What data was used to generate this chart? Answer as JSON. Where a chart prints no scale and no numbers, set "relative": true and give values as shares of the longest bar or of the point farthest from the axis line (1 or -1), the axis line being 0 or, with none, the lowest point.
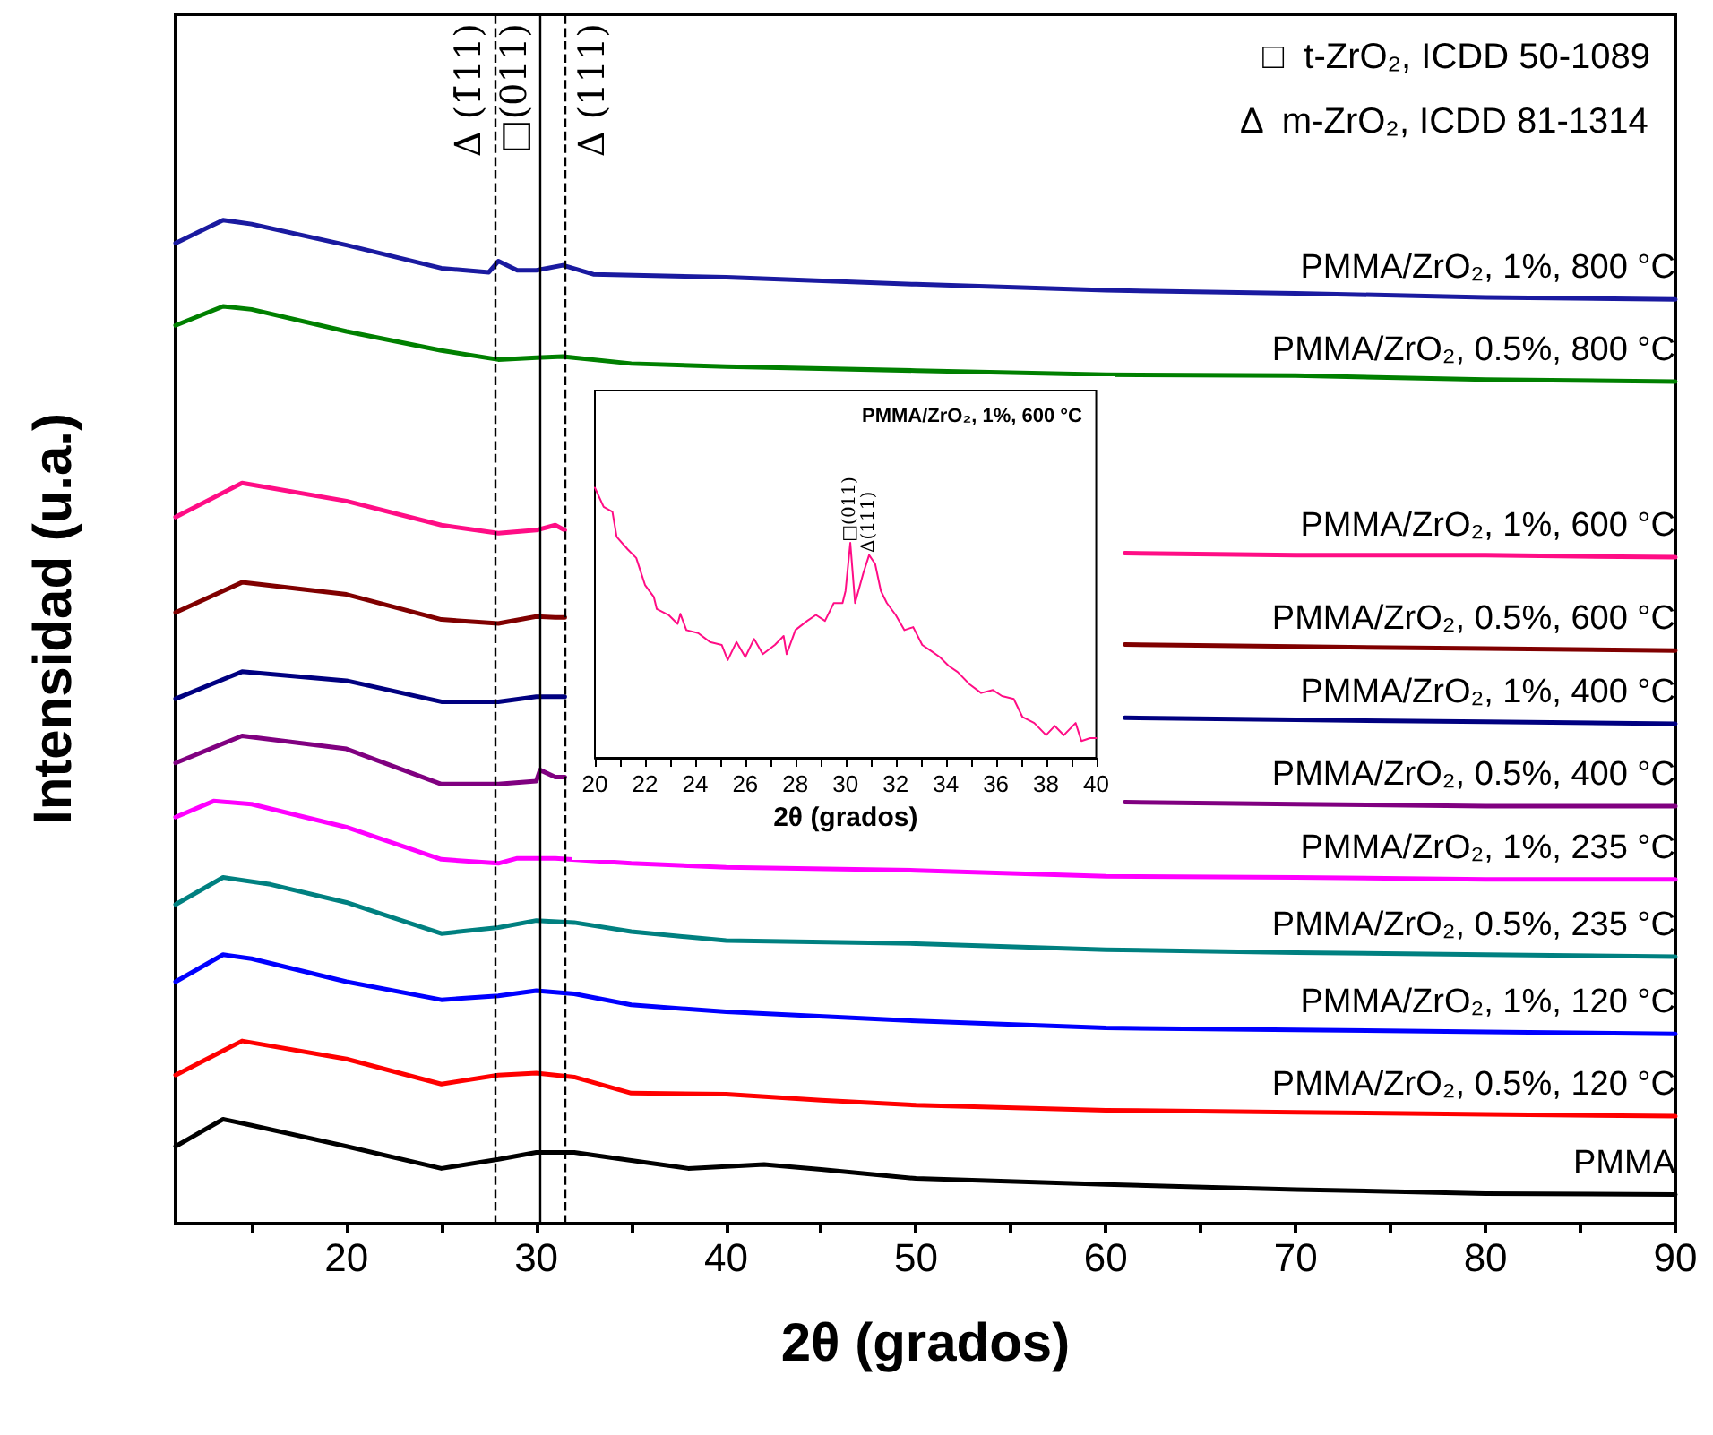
{
  "chart_data": [
    {
      "type": "line",
      "relative": true,
      "xlabel": "2θ (grados)",
      "ylabel": "Intensidad (u.a.)",
      "xlim": [
        11,
        90
      ],
      "xticks": [
        {
          "value": 15,
          "label": null
        },
        20,
        {
          "value": 25,
          "label": null
        },
        30,
        {
          "value": 35,
          "label": null
        },
        40,
        {
          "value": 45,
          "label": null
        },
        50,
        {
          "value": 55,
          "label": null
        },
        60,
        {
          "value": 65,
          "label": null
        },
        70,
        {
          "value": 75,
          "label": null
        },
        80,
        {
          "value": 85,
          "label": null
        },
        90
      ],
      "marker": "none",
      "line_style": "solid",
      "series": [
        {
          "name": "PMMA/ZrO₂, 1%, 800 °C",
          "color": "#1a1aa0",
          "x": [
            11,
            13.5,
            15,
            20,
            25,
            27.5,
            28,
            29,
            30,
            31.4,
            33,
            40,
            50,
            60,
            70,
            80,
            90
          ],
          "values": [
            0.977,
            1.0,
            0.996,
            0.975,
            0.952,
            0.948,
            0.959,
            0.95,
            0.95,
            0.955,
            0.946,
            0.943,
            0.936,
            0.93,
            0.927,
            0.923,
            0.921
          ]
        },
        {
          "name": "PMMA/ZrO₂, 0.5%, 800 °C",
          "color": "#008000",
          "x": [
            11,
            13.5,
            15,
            20,
            25,
            28,
            30,
            31.4,
            35,
            40,
            50,
            60,
            70,
            80,
            90
          ],
          "values": [
            0.895,
            0.914,
            0.911,
            0.889,
            0.87,
            0.861,
            0.863,
            0.864,
            0.857,
            0.854,
            0.85,
            0.846,
            0.845,
            0.841,
            0.839
          ]
        },
        {
          "name": "PMMA/ZrO₂, 1%, 600 °C",
          "color": "#ff0d85",
          "x": [
            11,
            14.5,
            20,
            25,
            28,
            30,
            31,
            31.5,
            45,
            61,
            70,
            80,
            90
          ],
          "values": [
            0.704,
            0.738,
            0.72,
            0.696,
            0.688,
            0.691,
            0.696,
            0.691,
            null,
            0.668,
            0.666,
            0.666,
            0.664
          ]
        },
        {
          "name": "PMMA/ZrO₂, 0.5%, 600 °C",
          "color": "#800000",
          "x": [
            11,
            14.5,
            20,
            25,
            28,
            30,
            31,
            31.5,
            45,
            61,
            70,
            80,
            90
          ],
          "values": [
            0.609,
            0.639,
            0.627,
            0.602,
            0.598,
            0.605,
            0.604,
            0.604,
            null,
            0.577,
            0.575,
            0.573,
            0.571
          ]
        },
        {
          "name": "PMMA/ZrO₂, 1%, 400 °C",
          "color": "#000080",
          "x": [
            11,
            14.5,
            20,
            25,
            28,
            30,
            31,
            31.5,
            45,
            61,
            70,
            80,
            90
          ],
          "values": [
            0.523,
            0.55,
            0.541,
            0.52,
            0.52,
            0.525,
            0.525,
            0.525,
            null,
            0.504,
            0.502,
            0.5,
            0.498
          ]
        },
        {
          "name": "PMMA/ZrO₂, 0.5%, 400 °C",
          "color": "#800080",
          "x": [
            11,
            14.5,
            20,
            25,
            28,
            30,
            30.2,
            31,
            31.5,
            45,
            61,
            70,
            80,
            90
          ],
          "values": [
            0.459,
            0.486,
            0.473,
            0.438,
            0.438,
            0.441,
            0.452,
            0.445,
            0.445,
            null,
            0.42,
            0.418,
            0.416,
            0.416
          ]
        },
        {
          "name": "PMMA/ZrO₂, 1%, 235 °C",
          "color": "#ff00ff",
          "x": [
            11,
            13,
            15,
            20,
            25,
            28,
            29,
            31,
            35,
            40,
            50,
            60,
            70,
            80,
            90
          ],
          "values": [
            0.405,
            0.421,
            0.418,
            0.395,
            0.363,
            0.359,
            0.364,
            0.364,
            0.359,
            0.355,
            0.352,
            0.346,
            0.345,
            0.343,
            0.343
          ]
        },
        {
          "name": "PMMA/ZrO₂, 0.5%, 235 °C",
          "color": "#008080",
          "x": [
            11,
            13.5,
            16,
            20,
            25,
            28,
            30,
            32,
            35,
            40,
            50,
            60,
            70,
            80,
            90
          ],
          "values": [
            0.318,
            0.345,
            0.338,
            0.32,
            0.289,
            0.295,
            0.302,
            0.3,
            0.291,
            0.282,
            0.279,
            0.273,
            0.27,
            0.268,
            0.266
          ]
        },
        {
          "name": "PMMA/ZrO₂, 1%, 120 °C",
          "color": "#0000ff",
          "x": [
            11,
            13.5,
            15,
            20,
            25,
            28,
            30,
            32,
            35,
            40,
            50,
            60,
            70,
            80,
            90
          ],
          "values": [
            0.241,
            0.268,
            0.264,
            0.241,
            0.223,
            0.227,
            0.232,
            0.229,
            0.218,
            0.211,
            0.202,
            0.195,
            0.193,
            0.191,
            0.189
          ]
        },
        {
          "name": "PMMA/ZrO₂, 0.5%, 120 °C",
          "color": "#ff0000",
          "x": [
            11,
            14.5,
            20,
            25,
            28,
            30,
            32,
            35,
            40,
            45,
            50,
            60,
            70,
            80,
            90
          ],
          "values": [
            0.148,
            0.182,
            0.164,
            0.139,
            0.148,
            0.15,
            0.146,
            0.13,
            0.129,
            0.123,
            0.118,
            0.113,
            0.111,
            0.109,
            0.107
          ]
        },
        {
          "name": "PMMA",
          "color": "#000000",
          "x": [
            11,
            13.5,
            15,
            20,
            25,
            28,
            30,
            32,
            35,
            38,
            42,
            45,
            50,
            60,
            70,
            80,
            90
          ],
          "values": [
            0.077,
            0.104,
            0.098,
            0.077,
            0.055,
            0.064,
            0.071,
            0.071,
            0.063,
            0.055,
            0.059,
            0.054,
            0.045,
            0.039,
            0.034,
            0.03,
            0.029
          ]
        }
      ],
      "ref_lines": [
        {
          "axis": "x",
          "value": 27.8,
          "label": "Δ (1̄11)",
          "line_style": "dashed",
          "color": "#000000"
        },
        {
          "axis": "x",
          "value": 30.2,
          "label": "□(011)",
          "line_style": "solid",
          "color": "#000000"
        },
        {
          "axis": "x",
          "value": 31.5,
          "label": "Δ (111)",
          "line_style": "dashed",
          "color": "#000000"
        }
      ],
      "annotations": [
        "□  t-ZrO₂, ICDD 50-1089",
        "Δ  m-ZrO₂, ICDD 81-1314"
      ]
    },
    {
      "type": "line",
      "relative": true,
      "title": "PMMA/ZrO₂, 1%, 600 °C",
      "xlabel": "2θ (grados)",
      "xlim": [
        20,
        40
      ],
      "xticks": [
        20,
        {
          "value": 21,
          "label": null
        },
        22,
        {
          "value": 23,
          "label": null
        },
        24,
        {
          "value": 25,
          "label": null
        },
        26,
        {
          "value": 27,
          "label": null
        },
        28,
        {
          "value": 29,
          "label": null
        },
        30,
        {
          "value": 31,
          "label": null
        },
        32,
        {
          "value": 33,
          "label": null
        },
        34,
        {
          "value": 35,
          "label": null
        },
        36,
        {
          "value": 37,
          "label": null
        },
        38,
        {
          "value": 39,
          "label": null
        },
        40
      ],
      "marker": "none",
      "line_style": "solid",
      "series": [
        {
          "color": "#ff0d85",
          "x": [
            20,
            20.35,
            20.7,
            20.87,
            21.3,
            21.65,
            22,
            22.35,
            22.47,
            22.94,
            23.3,
            23.41,
            23.65,
            24.12,
            24.59,
            25.06,
            25.3,
            25.65,
            26,
            26.35,
            26.7,
            27.18,
            27.53,
            27.65,
            28,
            28.47,
            28.82,
            29.18,
            29.53,
            29.88,
            30,
            30.19,
            30.38,
            30.71,
            30.94,
            31.18,
            31.41,
            31.65,
            32,
            32.35,
            32.7,
            33.06,
            33.41,
            33.76,
            34.12,
            34.47,
            34.94,
            35.41,
            35.88,
            36.24,
            36.71,
            37.06,
            37.53,
            38,
            38.35,
            38.71,
            39.18,
            39.41,
            39.76,
            40
          ],
          "values": [
            1.0,
            0.929,
            0.911,
            0.818,
            0.773,
            0.74,
            0.64,
            0.596,
            0.551,
            0.529,
            0.496,
            0.533,
            0.473,
            0.462,
            0.429,
            0.418,
            0.362,
            0.429,
            0.373,
            0.44,
            0.384,
            0.418,
            0.451,
            0.384,
            0.473,
            0.507,
            0.529,
            0.507,
            0.573,
            0.573,
            0.618,
            0.796,
            0.573,
            0.684,
            0.751,
            0.718,
            0.618,
            0.573,
            0.529,
            0.473,
            0.484,
            0.418,
            0.396,
            0.373,
            0.34,
            0.318,
            0.273,
            0.24,
            0.251,
            0.229,
            0.218,
            0.151,
            0.129,
            0.084,
            0.118,
            0.084,
            0.129,
            0.062,
            0.073,
            0.073
          ]
        }
      ],
      "annotations": [
        {
          "text": "□(011)",
          "x": 30.2,
          "y": 0.8
        },
        {
          "text": "Δ(111)",
          "x": 30.95,
          "y": 0.76
        }
      ]
    }
  ]
}
